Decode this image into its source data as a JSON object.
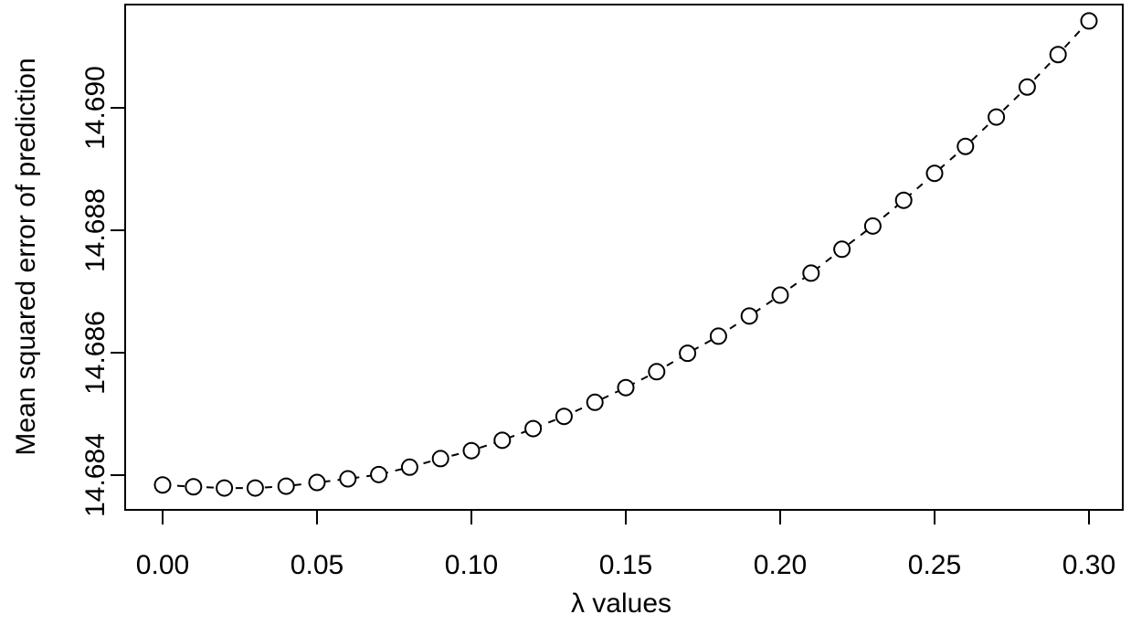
{
  "chart_data": {
    "type": "scatter",
    "x_label": "λ values",
    "y_label": "Mean squared error of prediction",
    "x": [
      0.0,
      0.01,
      0.02,
      0.03,
      0.04,
      0.05,
      0.06,
      0.07,
      0.08,
      0.09,
      0.1,
      0.11,
      0.12,
      0.13,
      0.14,
      0.15,
      0.16,
      0.17,
      0.18,
      0.19,
      0.2,
      0.21,
      0.22,
      0.23,
      0.24,
      0.25,
      0.26,
      0.27,
      0.28,
      0.29,
      0.3
    ],
    "series": [
      {
        "color": "#000000",
        "values": [
          14.68384,
          14.68381,
          14.68379,
          14.68379,
          14.68382,
          14.68388,
          14.68394,
          14.68401,
          14.68413,
          14.68427,
          14.6844,
          14.68457,
          14.68476,
          14.68496,
          14.68519,
          14.68543,
          14.68569,
          14.68599,
          14.68627,
          14.6866,
          14.68694,
          14.6873,
          14.68769,
          14.68807,
          14.68849,
          14.68893,
          14.68937,
          14.68985,
          14.69034,
          14.69087,
          14.69142
        ]
      }
    ],
    "xlim": [
      -0.01213,
      0.31095
    ],
    "ylim": [
      14.683433,
      14.691687
    ],
    "xticks": [
      {
        "value": 0,
        "label": "0.00"
      },
      0.05,
      {
        "value": 0.1,
        "label": "0.10"
      },
      0.15,
      {
        "value": 0.2,
        "label": "0.20"
      },
      0.25,
      {
        "value": 0.3,
        "label": "0.30"
      }
    ],
    "yticks": [
      14.684,
      14.686,
      14.688,
      {
        "value": 14.69,
        "label": "14.690"
      }
    ],
    "line_style": "dashed"
  }
}
